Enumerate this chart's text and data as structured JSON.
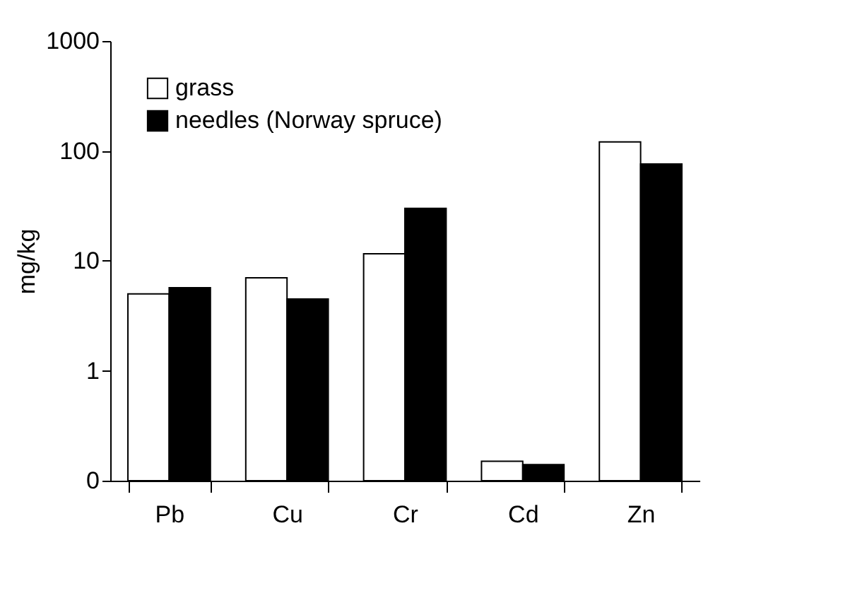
{
  "chart_data": {
    "type": "bar",
    "ylabel": "mg/kg",
    "categories": [
      "Pb",
      "Cu",
      "Cr",
      "Cd",
      "Zn"
    ],
    "series": [
      {
        "name": "grass",
        "color": "#ffffff",
        "values": [
          5,
          7,
          11.6,
          0.15,
          121
        ]
      },
      {
        "name": "needles (Norway spruce)",
        "color": "#000000",
        "values": [
          5.7,
          4.5,
          30,
          0.14,
          76
        ]
      }
    ],
    "log": true,
    "ylim": [
      0.1,
      1000
    ],
    "yticks": [
      {
        "value": 0.1,
        "label": "0"
      },
      1,
      10,
      100,
      1000
    ],
    "legend": "top left",
    "grid": false
  }
}
